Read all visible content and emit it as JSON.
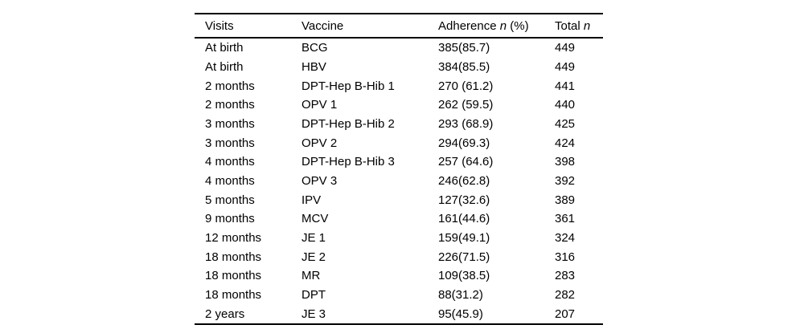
{
  "table": {
    "columns": [
      {
        "label": "Visits",
        "italic": "",
        "suffix": ""
      },
      {
        "label": "Vaccine",
        "italic": "",
        "suffix": ""
      },
      {
        "label": "Adherence ",
        "italic": "n",
        "suffix": " (%)"
      },
      {
        "label": "Total ",
        "italic": "n",
        "suffix": ""
      }
    ],
    "column_keys": [
      "visits",
      "vaccine",
      "adherence",
      "total"
    ],
    "rows": [
      {
        "visits": "At birth",
        "vaccine": "BCG",
        "adherence": "385(85.7)",
        "total": "449"
      },
      {
        "visits": "At birth",
        "vaccine": "HBV",
        "adherence": "384(85.5)",
        "total": "449"
      },
      {
        "visits": "2 months",
        "vaccine": "DPT-Hep B-Hib 1",
        "adherence": "270 (61.2)",
        "total": "441"
      },
      {
        "visits": "2 months",
        "vaccine": "OPV 1",
        "adherence": "262 (59.5)",
        "total": "440"
      },
      {
        "visits": "3 months",
        "vaccine": "DPT-Hep B-Hib 2",
        "adherence": "293 (68.9)",
        "total": "425"
      },
      {
        "visits": "3 months",
        "vaccine": "OPV 2",
        "adherence": "294(69.3)",
        "total": "424"
      },
      {
        "visits": "4 months",
        "vaccine": "DPT-Hep B-Hib 3",
        "adherence": "257 (64.6)",
        "total": "398"
      },
      {
        "visits": "4 months",
        "vaccine": "OPV 3",
        "adherence": "246(62.8)",
        "total": "392"
      },
      {
        "visits": "5 months",
        "vaccine": "IPV",
        "adherence": "127(32.6)",
        "total": "389"
      },
      {
        "visits": "9 months",
        "vaccine": "MCV",
        "adherence": "161(44.6)",
        "total": "361"
      },
      {
        "visits": "12 months",
        "vaccine": "JE 1",
        "adherence": "159(49.1)",
        "total": "324"
      },
      {
        "visits": "18 months",
        "vaccine": "JE 2",
        "adherence": "226(71.5)",
        "total": "316"
      },
      {
        "visits": "18 months",
        "vaccine": "MR",
        "adherence": "109(38.5)",
        "total": "283"
      },
      {
        "visits": "18 months",
        "vaccine": "DPT",
        "adherence": "88(31.2)",
        "total": "282"
      },
      {
        "visits": "2 years",
        "vaccine": "JE 3",
        "adherence": "95(45.9)",
        "total": "207"
      }
    ],
    "colors": {
      "text": "#000000",
      "background": "#ffffff",
      "rule": "#000000"
    }
  }
}
